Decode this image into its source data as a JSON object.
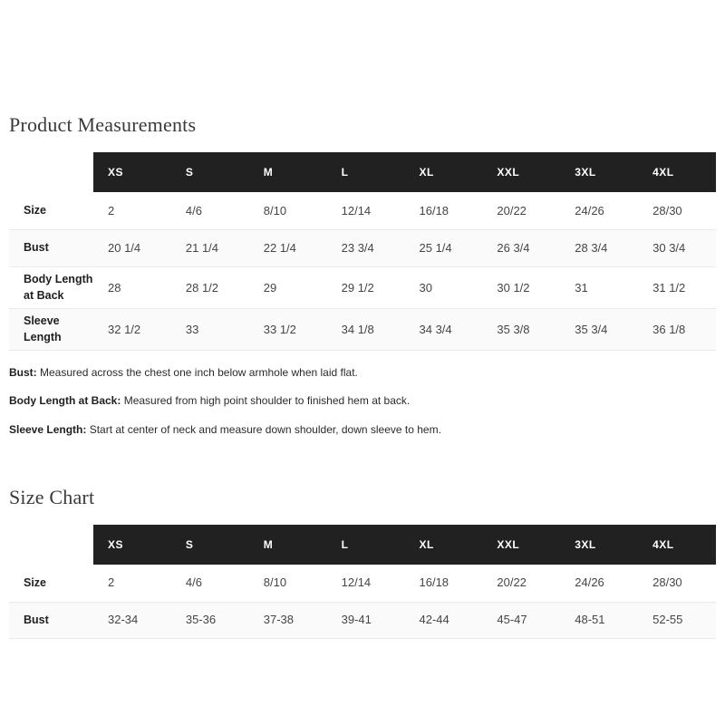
{
  "colors": {
    "table_header_bg": "#212121",
    "table_header_text": "#ffffff",
    "row_stripe_bg": "#fafafa",
    "divider": "#eaeaea",
    "title_text": "#3a3a3a"
  },
  "product_measurements": {
    "title": "Product Measurements",
    "columns": [
      "XS",
      "S",
      "M",
      "L",
      "XL",
      "XXL",
      "3XL",
      "4XL"
    ],
    "rows": [
      {
        "label": "Size",
        "values": [
          "2",
          "4/6",
          "8/10",
          "12/14",
          "16/18",
          "20/22",
          "24/26",
          "28/30"
        ]
      },
      {
        "label": "Bust",
        "values": [
          "20 1/4",
          "21 1/4",
          "22 1/4",
          "23 3/4",
          "25 1/4",
          "26 3/4",
          "28 3/4",
          "30 3/4"
        ]
      },
      {
        "label": "Body Length at Back",
        "values": [
          "28",
          "28 1/2",
          "29",
          "29 1/2",
          "30",
          "30 1/2",
          "31",
          "31 1/2"
        ]
      },
      {
        "label": "Sleeve Length",
        "values": [
          "32 1/2",
          "33",
          "33 1/2",
          "34 1/8",
          "34 3/4",
          "35 3/8",
          "35 3/4",
          "36 1/8"
        ]
      }
    ],
    "notes": [
      {
        "label": "Bust:",
        "text": "Measured across the chest one inch below armhole when laid flat."
      },
      {
        "label": "Body Length at Back:",
        "text": "Measured from high point shoulder to finished hem at back."
      },
      {
        "label": "Sleeve Length:",
        "text": "Start at center of neck and measure down shoulder, down sleeve to hem."
      }
    ]
  },
  "size_chart": {
    "title": "Size Chart",
    "columns": [
      "XS",
      "S",
      "M",
      "L",
      "XL",
      "XXL",
      "3XL",
      "4XL"
    ],
    "rows": [
      {
        "label": "Size",
        "values": [
          "2",
          "4/6",
          "8/10",
          "12/14",
          "16/18",
          "20/22",
          "24/26",
          "28/30"
        ]
      },
      {
        "label": "Bust",
        "values": [
          "32-34",
          "35-36",
          "37-38",
          "39-41",
          "42-44",
          "45-47",
          "48-51",
          "52-55"
        ]
      }
    ]
  }
}
